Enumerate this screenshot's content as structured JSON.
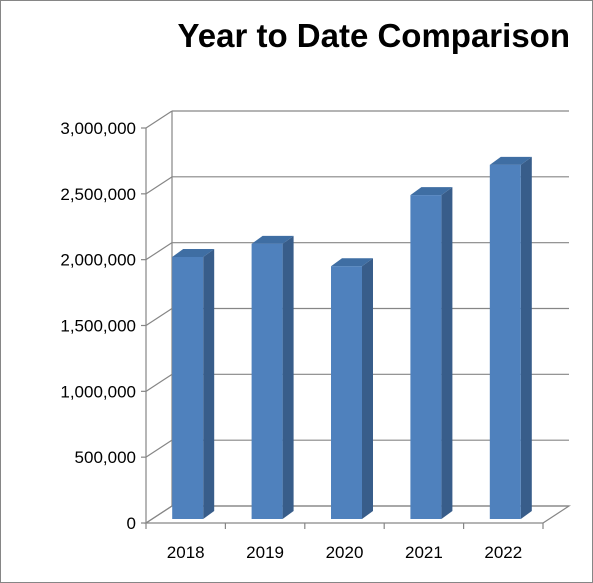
{
  "chart_data": {
    "type": "bar",
    "title": "Year to Date Comparison",
    "categories": [
      "2018",
      "2019",
      "2020",
      "2021",
      "2022"
    ],
    "values": [
      1990000,
      2090000,
      1920000,
      2460000,
      2690000
    ],
    "ylim": [
      0,
      3000000
    ],
    "yticks": [
      0,
      500000,
      1000000,
      1500000,
      2000000,
      2500000,
      3000000
    ],
    "ytick_labels": [
      "0",
      "500,000",
      "1,000,000",
      "1,500,000",
      "2,000,000",
      "2,500,000",
      "3,000,000"
    ],
    "xlabel": "",
    "ylabel": "",
    "grid": true,
    "legend": "none",
    "style": "3d-column",
    "colors": {
      "bar_front": "#4f81bd",
      "bar_side": "#385d8a",
      "bar_top": "#3f6ea3",
      "grid": "#868686"
    }
  }
}
